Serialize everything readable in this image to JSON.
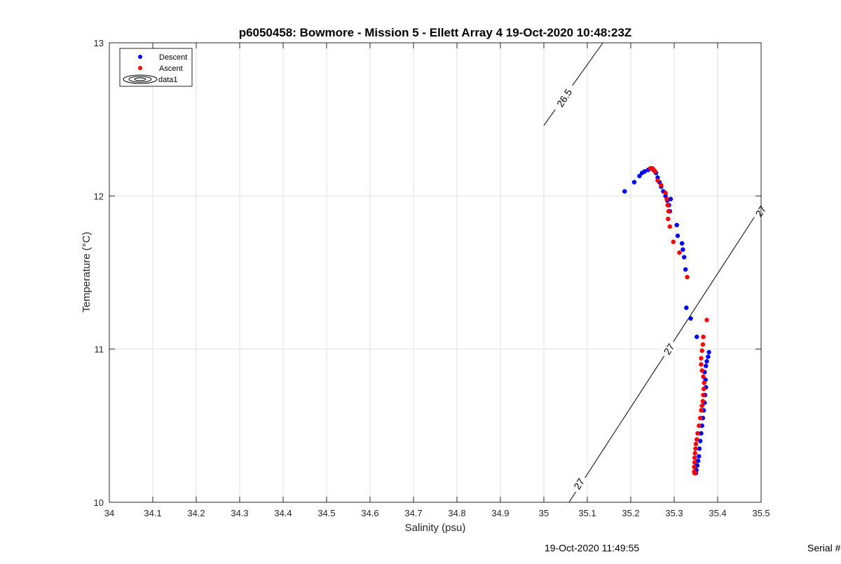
{
  "chart_data": {
    "type": "scatter",
    "title": "p6050458: Bowmore - Mission 5 - Ellett Array 4 19-Oct-2020 10:48:23Z",
    "xlabel": "Salinity (psu)",
    "ylabel": "Temperature (°C)",
    "xlim": [
      34,
      35.5
    ],
    "ylim": [
      10,
      13
    ],
    "x_ticks": [
      34,
      34.1,
      34.2,
      34.3,
      34.4,
      34.5,
      34.6,
      34.7,
      34.8,
      34.9,
      35,
      35.1,
      35.2,
      35.3,
      35.4,
      35.5
    ],
    "x_tick_labels": [
      "34",
      "34.1",
      "34.2",
      "34.3",
      "34.4",
      "34.5",
      "34.6",
      "34.7",
      "34.8",
      "34.9",
      "35",
      "35.1",
      "35.2",
      "35.3",
      "35.4",
      "35.5"
    ],
    "y_ticks": [
      10,
      11,
      12,
      13
    ],
    "y_tick_labels": [
      "10",
      "11",
      "12",
      "13"
    ],
    "grid": true,
    "legend": {
      "placement": "top-left",
      "entries": [
        {
          "label": "Descent",
          "color": "#0000ff",
          "marker": "dot"
        },
        {
          "label": "Ascent",
          "color": "#ff0000",
          "marker": "dot"
        },
        {
          "label": "data1",
          "color": "#000000",
          "marker": "contour"
        }
      ]
    },
    "contours": [
      {
        "label": "26.5",
        "points": [
          [
            35.0,
            12.46
          ],
          [
            35.136,
            13.0
          ]
        ],
        "label_at": [
          35.047,
          12.64
        ]
      },
      {
        "label": "27",
        "points": [
          [
            35.058,
            10.0
          ],
          [
            35.5,
            11.93
          ]
        ],
        "label_at": [
          35.288,
          11.0
        ]
      },
      {
        "label": "27",
        "label_at": [
          35.081,
          10.12
        ]
      },
      {
        "label": "27",
        "label_at": [
          35.499,
          11.9
        ]
      }
    ],
    "series": [
      {
        "name": "Descent",
        "color": "#0000ff",
        "points": [
          [
            35.186,
            12.03
          ],
          [
            35.208,
            12.09
          ],
          [
            35.22,
            12.13
          ],
          [
            35.226,
            12.15
          ],
          [
            35.232,
            12.16
          ],
          [
            35.24,
            12.17
          ],
          [
            35.247,
            12.18
          ],
          [
            35.252,
            12.17
          ],
          [
            35.258,
            12.15
          ],
          [
            35.262,
            12.12
          ],
          [
            35.266,
            12.09
          ],
          [
            35.27,
            12.06
          ],
          [
            35.275,
            12.03
          ],
          [
            35.28,
            12.0
          ],
          [
            35.284,
            11.97
          ],
          [
            35.288,
            11.94
          ],
          [
            35.292,
            11.98
          ],
          [
            35.29,
            11.9
          ],
          [
            35.306,
            11.81
          ],
          [
            35.308,
            11.74
          ],
          [
            35.318,
            11.69
          ],
          [
            35.32,
            11.65
          ],
          [
            35.323,
            11.6
          ],
          [
            35.326,
            11.52
          ],
          [
            35.328,
            11.27
          ],
          [
            35.338,
            11.2
          ],
          [
            35.352,
            11.08
          ],
          [
            35.38,
            10.98
          ],
          [
            35.378,
            10.95
          ],
          [
            35.375,
            10.92
          ],
          [
            35.373,
            10.89
          ],
          [
            35.37,
            10.85
          ],
          [
            35.372,
            10.8
          ],
          [
            35.373,
            10.75
          ],
          [
            35.371,
            10.7
          ],
          [
            35.37,
            10.65
          ],
          [
            35.368,
            10.6
          ],
          [
            35.366,
            10.55
          ],
          [
            35.364,
            10.5
          ],
          [
            35.362,
            10.45
          ],
          [
            35.36,
            10.4
          ],
          [
            35.358,
            10.35
          ],
          [
            35.357,
            10.3
          ],
          [
            35.355,
            10.27
          ],
          [
            35.353,
            10.24
          ],
          [
            35.351,
            10.21
          ],
          [
            35.35,
            10.19
          ]
        ]
      },
      {
        "name": "Ascent",
        "color": "#ff0000",
        "points": [
          [
            35.245,
            12.18
          ],
          [
            35.25,
            12.18
          ],
          [
            35.253,
            12.17
          ],
          [
            35.256,
            12.16
          ],
          [
            35.262,
            12.1
          ],
          [
            35.27,
            12.07
          ],
          [
            35.28,
            12.02
          ],
          [
            35.283,
            11.98
          ],
          [
            35.285,
            11.94
          ],
          [
            35.287,
            11.9
          ],
          [
            35.286,
            11.85
          ],
          [
            35.29,
            11.8
          ],
          [
            35.298,
            11.7
          ],
          [
            35.312,
            11.63
          ],
          [
            35.33,
            11.47
          ],
          [
            35.375,
            11.19
          ],
          [
            35.367,
            11.08
          ],
          [
            35.366,
            11.03
          ],
          [
            35.364,
            10.99
          ],
          [
            35.362,
            10.94
          ],
          [
            35.362,
            10.9
          ],
          [
            35.364,
            10.86
          ],
          [
            35.367,
            10.82
          ],
          [
            35.369,
            10.78
          ],
          [
            35.368,
            10.74
          ],
          [
            35.367,
            10.7
          ],
          [
            35.366,
            10.66
          ],
          [
            35.364,
            10.63
          ],
          [
            35.362,
            10.6
          ],
          [
            35.36,
            10.55
          ],
          [
            35.357,
            10.5
          ],
          [
            35.354,
            10.45
          ],
          [
            35.352,
            10.41
          ],
          [
            35.35,
            10.38
          ],
          [
            35.349,
            10.35
          ],
          [
            35.348,
            10.32
          ],
          [
            35.347,
            10.29
          ],
          [
            35.347,
            10.26
          ],
          [
            35.346,
            10.23
          ],
          [
            35.346,
            10.2
          ],
          [
            35.347,
            10.19
          ],
          [
            35.348,
            10.19
          ]
        ]
      }
    ]
  },
  "footer": {
    "timestamp": "19-Oct-2020 11:49:55",
    "serial": "Serial #"
  }
}
